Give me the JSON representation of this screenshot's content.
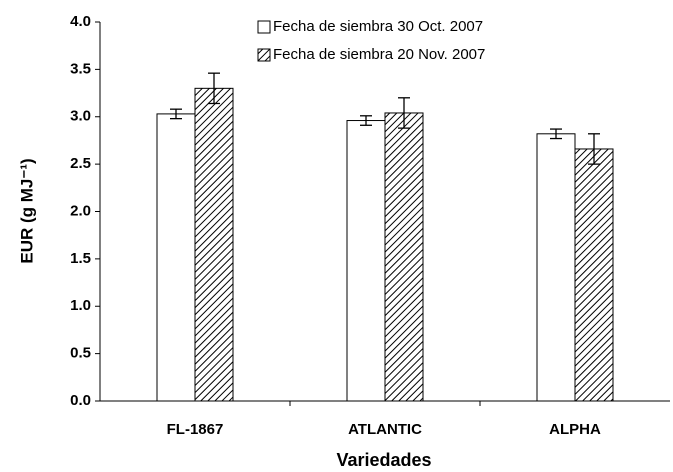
{
  "chart_data": {
    "type": "bar",
    "ylabel": "EUR (g MJ⁻¹)",
    "xlabel": "Variedades",
    "categories": [
      "FL-1867",
      "ATLANTIC",
      "ALPHA"
    ],
    "series": [
      {
        "name": "Fecha de siembra 30 Oct. 2007",
        "color": "#ffffff",
        "pattern": "solid",
        "values": [
          3.03,
          2.96,
          2.82
        ],
        "errors": [
          0.05,
          0.05,
          0.05
        ]
      },
      {
        "name": "Fecha de siembra 20 Nov. 2007",
        "color": "#ffffff",
        "pattern": "hatch",
        "values": [
          3.3,
          3.04,
          2.66
        ],
        "errors": [
          0.16,
          0.16,
          0.16
        ]
      }
    ],
    "ylim": [
      0,
      4
    ],
    "yticks": [
      {
        "value": 0,
        "label": "0.0"
      },
      {
        "value": 0.5,
        "label": "0.5"
      },
      {
        "value": 1,
        "label": "1.0"
      },
      {
        "value": 1.5,
        "label": "1.5"
      },
      {
        "value": 2,
        "label": "2.0"
      },
      {
        "value": 2.5,
        "label": "2.5"
      },
      {
        "value": 3,
        "label": "3.0"
      },
      {
        "value": 3.5,
        "label": "3.5"
      },
      {
        "value": 4,
        "label": "4.0"
      }
    ],
    "grid": false,
    "legend": "top"
  }
}
